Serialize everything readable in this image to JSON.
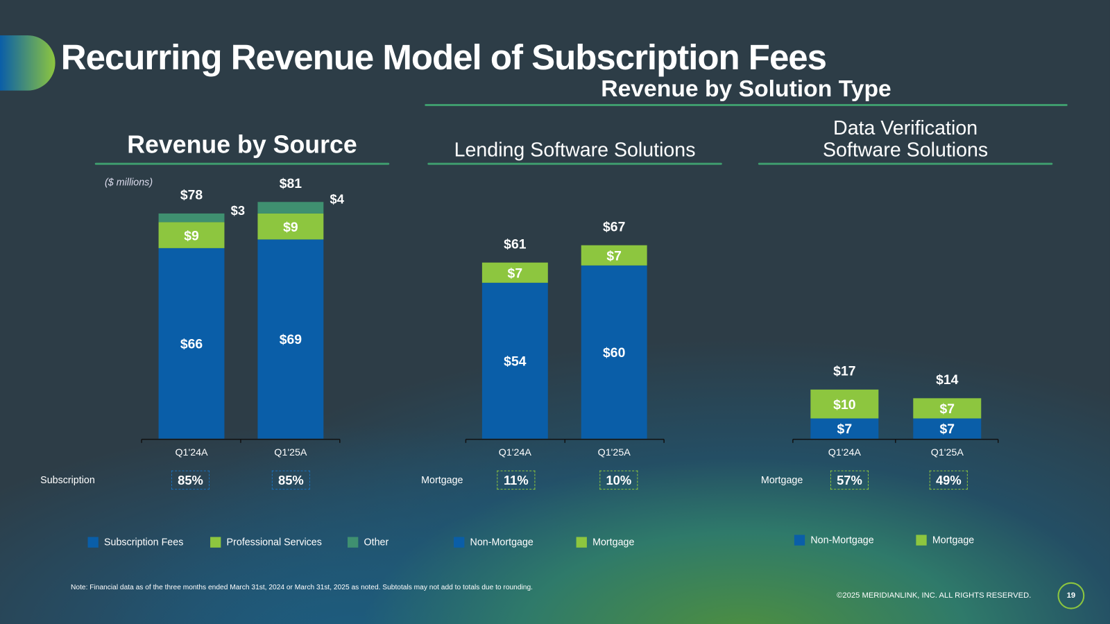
{
  "title": "Recurring Revenue Model of Subscription Fees",
  "section_title": "Revenue by Solution Type",
  "units": "($ millions)",
  "colors": {
    "blue": "#0a5ea8",
    "green": "#8dc63f",
    "other": "#3f9070"
  },
  "chart_data": [
    {
      "type": "bar",
      "stacked": true,
      "title": "Revenue by Source",
      "categories": [
        "Q1'24A",
        "Q1'25A"
      ],
      "series": [
        {
          "name": "Subscription Fees",
          "values": [
            66,
            69
          ],
          "labels": [
            "$66",
            "$69"
          ],
          "color": "#0a5ea8"
        },
        {
          "name": "Professional Services",
          "values": [
            9,
            9
          ],
          "labels": [
            "$9",
            "$9"
          ],
          "color": "#8dc63f"
        },
        {
          "name": "Other",
          "values": [
            3,
            4
          ],
          "labels": [
            "$3",
            "$4"
          ],
          "color": "#3f9070",
          "label_outside": true
        }
      ],
      "totals": [
        "$78",
        "$81"
      ],
      "row_label": "Subscription",
      "percents": [
        "85%",
        "85%"
      ]
    },
    {
      "type": "bar",
      "stacked": true,
      "title": "Lending Software Solutions",
      "categories": [
        "Q1'24A",
        "Q1'25A"
      ],
      "series": [
        {
          "name": "Non-Mortgage",
          "values": [
            54,
            60
          ],
          "labels": [
            "$54",
            "$60"
          ],
          "color": "#0a5ea8"
        },
        {
          "name": "Mortgage",
          "values": [
            7,
            7
          ],
          "labels": [
            "$7",
            "$7"
          ],
          "color": "#8dc63f"
        }
      ],
      "totals": [
        "$61",
        "$67"
      ],
      "row_label": "Mortgage",
      "percents": [
        "11%",
        "10%"
      ]
    },
    {
      "type": "bar",
      "stacked": true,
      "title": "Data Verification Software Solutions",
      "title_lines": [
        "Data Verification",
        "Software Solutions"
      ],
      "categories": [
        "Q1'24A",
        "Q1'25A"
      ],
      "series": [
        {
          "name": "Non-Mortgage",
          "values": [
            7,
            7
          ],
          "labels": [
            "$7",
            "$7"
          ],
          "color": "#0a5ea8"
        },
        {
          "name": "Mortgage",
          "values": [
            10,
            7
          ],
          "labels": [
            "$10",
            "$7"
          ],
          "color": "#8dc63f"
        }
      ],
      "totals": [
        "$17",
        "$14"
      ],
      "row_label": "Mortgage",
      "percents": [
        "57%",
        "49%"
      ]
    }
  ],
  "footer": {
    "note": "Note: Financial data as of the three months ended March 31st, 2024 or March 31st, 2025 as noted. Subtotals may not add to totals due to rounding.",
    "copyright": "©2025 MERIDIANLINK, INC. ALL RIGHTS RESERVED.",
    "page": "19"
  }
}
